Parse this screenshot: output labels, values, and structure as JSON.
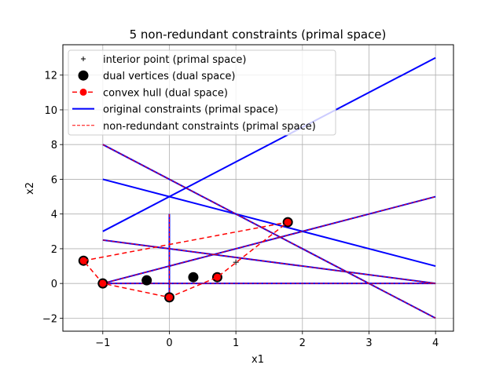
{
  "chart_data": {
    "type": "line",
    "title": "5 non-redundant constraints (primal space)",
    "xlabel": "x1",
    "ylabel": "x2",
    "xlim": [
      -1.6,
      4.27
    ],
    "ylim": [
      -2.75,
      13.75
    ],
    "xticks": [
      -1,
      0,
      1,
      2,
      3,
      4
    ],
    "yticks": [
      -2,
      0,
      2,
      4,
      6,
      8,
      10,
      12
    ],
    "xtick_labels": [
      "−1",
      "0",
      "1",
      "2",
      "3",
      "4"
    ],
    "ytick_labels": [
      "−2",
      "0",
      "2",
      "4",
      "6",
      "8",
      "10",
      "12"
    ],
    "grid": true,
    "legend_position": "upper left",
    "legend": [
      {
        "label": "interior point (primal space)",
        "style": "plus-marker",
        "color": "#000000"
      },
      {
        "label": "dual vertices (dual space)",
        "style": "black-circle",
        "color": "#000000"
      },
      {
        "label": "convex hull (dual space)",
        "style": "red-dashed-circle",
        "color": "#ff0000"
      },
      {
        "label": "original constraints (primal space)",
        "style": "blue-solid",
        "color": "#0000ff"
      },
      {
        "label": "non-redundant constraints (primal space)",
        "style": "red-dashed-thin",
        "color": "#ff0000"
      }
    ],
    "series": [
      {
        "name": "interior point (primal space)",
        "kind": "scatter",
        "marker": "+",
        "color": "#000000",
        "points": [
          [
            1.0,
            1.22
          ]
        ]
      },
      {
        "name": "dual vertices (dual space)",
        "kind": "scatter",
        "marker": "o",
        "color": "#000000",
        "points": [
          [
            -1.29,
            1.31
          ],
          [
            -1.0,
            0.0
          ],
          [
            -0.34,
            0.18
          ],
          [
            0.0,
            -0.8
          ],
          [
            0.36,
            0.36
          ],
          [
            0.72,
            0.36
          ],
          [
            1.78,
            3.53
          ]
        ]
      },
      {
        "name": "convex hull (dual space)",
        "kind": "line",
        "style": "dashed",
        "marker": "o",
        "color": "#ff0000",
        "points": [
          [
            -1.29,
            1.31
          ],
          [
            1.78,
            3.53
          ],
          [
            0.72,
            0.36
          ],
          [
            0.0,
            -0.8
          ],
          [
            -1.0,
            0.0
          ],
          [
            -1.29,
            1.31
          ]
        ]
      },
      {
        "name": "original constraints (primal space)",
        "kind": "segments",
        "color": "#0000ff",
        "segments": [
          [
            [
              -1,
              8
            ],
            [
              4,
              -2
            ]
          ],
          [
            [
              -1,
              6
            ],
            [
              4,
              1
            ]
          ],
          [
            [
              -1,
              3
            ],
            [
              4,
              13
            ]
          ],
          [
            [
              -1,
              0
            ],
            [
              4,
              5
            ]
          ],
          [
            [
              -1,
              2.5
            ],
            [
              4,
              0
            ]
          ],
          [
            [
              -1,
              0
            ],
            [
              4,
              0
            ]
          ],
          [
            [
              0,
              -0.8
            ],
            [
              0,
              4
            ]
          ]
        ]
      },
      {
        "name": "non-redundant constraints (primal space)",
        "kind": "segments",
        "style": "dashed",
        "color": "#ff0000",
        "segments": [
          [
            [
              -1,
              8
            ],
            [
              4,
              -2
            ]
          ],
          [
            [
              -1,
              0
            ],
            [
              4,
              5
            ]
          ],
          [
            [
              -1,
              2.5
            ],
            [
              4,
              0
            ]
          ],
          [
            [
              -1,
              0
            ],
            [
              4,
              0
            ]
          ],
          [
            [
              0,
              -0.8
            ],
            [
              0,
              4
            ]
          ]
        ]
      }
    ]
  }
}
